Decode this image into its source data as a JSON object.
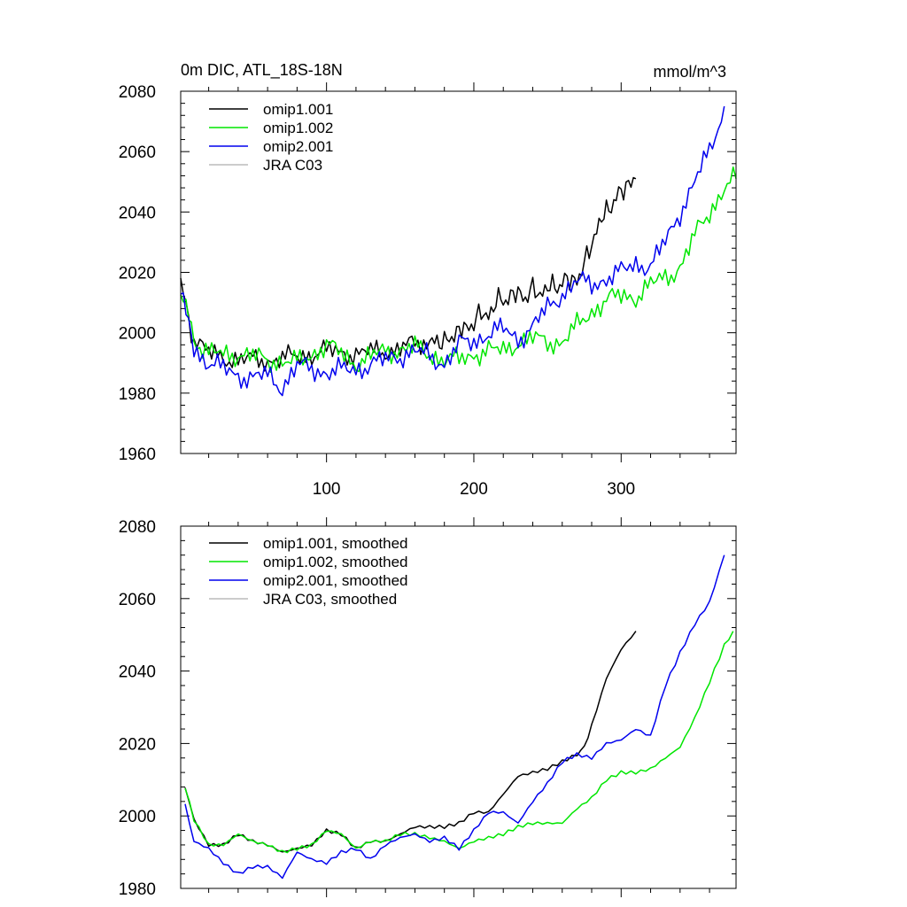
{
  "chart_data": [
    {
      "type": "line",
      "title": "0m DIC, ATL_18S-18N",
      "units": "mmol/m^3",
      "xlim": [
        1,
        378
      ],
      "ylim": [
        1960,
        2080
      ],
      "xticks": [
        100,
        200,
        300
      ],
      "yticks": [
        1960,
        1980,
        2000,
        2020,
        2040,
        2060,
        2080
      ],
      "legend_position": "top-left",
      "series": [
        {
          "name": "omip1.001",
          "color": "#000000",
          "x": [
            1,
            10,
            20,
            40,
            60,
            80,
            100,
            120,
            140,
            160,
            170,
            175,
            180,
            185,
            190,
            195,
            200,
            205,
            210,
            215,
            220,
            225,
            230,
            235,
            240,
            245,
            250,
            255,
            260,
            265,
            270,
            275,
            280,
            285,
            290,
            295,
            300,
            305,
            310
          ],
          "y": [
            2015,
            1998,
            1993,
            1991,
            1991,
            1992,
            1994,
            1993,
            1994,
            1996,
            1997,
            1998,
            1996,
            1999,
            2001,
            2001,
            2004,
            2006,
            2006,
            2010,
            2011,
            2012,
            2013,
            2012,
            2014,
            2013,
            2015,
            2015,
            2017,
            2017,
            2018,
            2022,
            2030,
            2036,
            2040,
            2044,
            2046,
            2050,
            2051
          ]
        },
        {
          "name": "omip1.002",
          "color": "#00e600",
          "x": [
            1,
            10,
            20,
            40,
            60,
            80,
            100,
            120,
            140,
            160,
            180,
            190,
            200,
            210,
            220,
            230,
            240,
            250,
            260,
            270,
            280,
            290,
            300,
            310,
            320,
            330,
            340,
            350,
            360,
            370,
            378
          ],
          "y": [
            2015,
            1998,
            1993,
            1993,
            1991,
            1990,
            1996,
            1990,
            1994,
            1995,
            1991,
            1991,
            1993,
            1994,
            1994,
            1997,
            1998,
            1997,
            1997,
            2002,
            2007,
            2011,
            2012,
            2012,
            2016,
            2018,
            2022,
            2032,
            2040,
            2048,
            2051
          ]
        },
        {
          "name": "omip2.001",
          "color": "#0000ee",
          "x": [
            1,
            10,
            20,
            40,
            50,
            60,
            70,
            80,
            100,
            120,
            140,
            160,
            180,
            190,
            200,
            210,
            220,
            230,
            240,
            250,
            260,
            270,
            280,
            290,
            300,
            310,
            320,
            330,
            340,
            350,
            360,
            370
          ],
          "y": [
            2015,
            1995,
            1990,
            1986,
            1985,
            1986,
            1982,
            1989,
            1987,
            1988,
            1991,
            1994,
            1990,
            1996,
            1997,
            2000,
            2001,
            1998,
            2002,
            2008,
            2013,
            2017,
            2016,
            2018,
            2020,
            2023,
            2022,
            2030,
            2040,
            2050,
            2060,
            2075
          ]
        },
        {
          "name": "JRA C03",
          "color": "#bbbbbb",
          "x": [],
          "y": []
        }
      ]
    },
    {
      "type": "line",
      "xlim": [
        1,
        378
      ],
      "ylim": [
        1980,
        2080
      ],
      "xticks": [
        100,
        200,
        300
      ],
      "yticks": [
        1980,
        2000,
        2020,
        2040,
        2060,
        2080
      ],
      "legend_position": "top-left",
      "series": [
        {
          "name": "omip1.001, smoothed",
          "color": "#000000",
          "x": [
            4,
            10,
            20,
            30,
            40,
            50,
            60,
            70,
            80,
            90,
            100,
            110,
            120,
            130,
            140,
            150,
            160,
            170,
            180,
            190,
            200,
            210,
            220,
            230,
            240,
            250,
            260,
            270,
            275,
            280,
            290,
            300,
            310
          ],
          "y": [
            2008,
            1999,
            1992,
            1992,
            1995,
            1993,
            1992,
            1990,
            1991,
            1992,
            1996,
            1995,
            1991,
            1993,
            1993,
            1995,
            1997,
            1997,
            1997,
            1998,
            2001,
            2001,
            2006,
            2011,
            2012,
            2013,
            2015,
            2017,
            2019,
            2025,
            2038,
            2046,
            2051
          ]
        },
        {
          "name": "omip1.002, smoothed",
          "color": "#00e600",
          "x": [
            4,
            10,
            20,
            30,
            40,
            50,
            60,
            70,
            80,
            90,
            100,
            110,
            120,
            130,
            140,
            150,
            160,
            170,
            180,
            190,
            200,
            210,
            220,
            230,
            240,
            250,
            260,
            270,
            280,
            290,
            300,
            310,
            320,
            330,
            340,
            350,
            360,
            370,
            376
          ],
          "y": [
            2008,
            1999,
            1992,
            1992,
            1995,
            1993,
            1992,
            1990,
            1991,
            1992,
            1996,
            1995,
            1991,
            1993,
            1993,
            1995,
            1995,
            1994,
            1993,
            1991,
            1993,
            1994,
            1995,
            1997,
            1998,
            1998,
            1998,
            2002,
            2005,
            2010,
            2012,
            2012,
            2013,
            2016,
            2019,
            2027,
            2037,
            2047,
            2051
          ]
        },
        {
          "name": "omip2.001, smoothed",
          "color": "#0000ee",
          "x": [
            4,
            10,
            20,
            30,
            40,
            50,
            60,
            70,
            80,
            90,
            100,
            110,
            120,
            130,
            140,
            150,
            160,
            170,
            180,
            190,
            200,
            210,
            220,
            230,
            240,
            250,
            260,
            270,
            280,
            290,
            300,
            310,
            320,
            330,
            340,
            350,
            360,
            370
          ],
          "y": [
            2003,
            1993,
            1991,
            1987,
            1984,
            1986,
            1986,
            1983,
            1990,
            1988,
            1987,
            1990,
            1991,
            1988,
            1992,
            1994,
            1995,
            1993,
            1994,
            1991,
            1996,
            2001,
            2001,
            1998,
            2004,
            2009,
            2015,
            2017,
            2016,
            2020,
            2021,
            2024,
            2022,
            2036,
            2045,
            2053,
            2059,
            2072
          ]
        },
        {
          "name": "JRA C03, smoothed",
          "color": "#bbbbbb",
          "x": [],
          "y": []
        }
      ]
    }
  ]
}
